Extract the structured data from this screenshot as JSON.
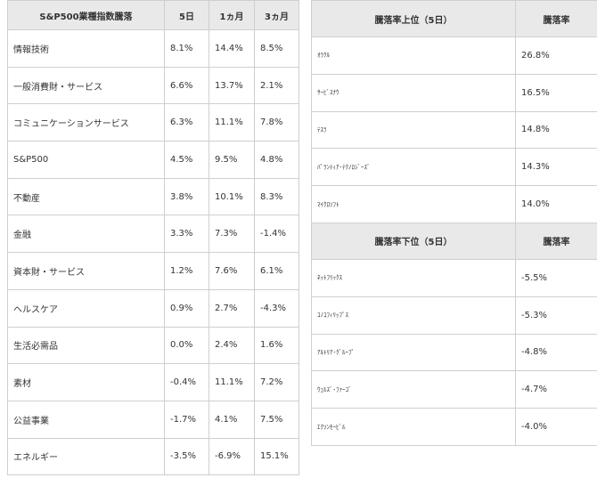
{
  "sector_table": {
    "headers": [
      "S&P500業種指数騰落",
      "5日",
      "1ヵ月",
      "3ヵ月"
    ],
    "rows": [
      [
        "情報技術",
        "8.1%",
        "14.4%",
        "8.5%"
      ],
      [
        "一般消費財・サービス",
        "6.6%",
        "13.7%",
        "2.1%"
      ],
      [
        "コミュニケーションサービス",
        "6.3%",
        "11.1%",
        "7.8%"
      ],
      [
        "S&P500",
        "4.5%",
        "9.5%",
        "4.8%"
      ],
      [
        "不動産",
        "3.8%",
        "10.1%",
        "8.3%"
      ],
      [
        "金融",
        "3.3%",
        "7.3%",
        "-1.4%"
      ],
      [
        "資本財・サービス",
        "1.2%",
        "7.6%",
        "6.1%"
      ],
      [
        "ヘルスケア",
        "0.9%",
        "2.7%",
        "-4.3%"
      ],
      [
        "生活必需品",
        "0.0%",
        "2.4%",
        "1.6%"
      ],
      [
        "素材",
        "-0.4%",
        "11.1%",
        "7.2%"
      ],
      [
        "公益事業",
        "-1.7%",
        "4.1%",
        "7.5%"
      ],
      [
        "エネルギー",
        "-3.5%",
        "-6.9%",
        "15.1%"
      ]
    ]
  },
  "top_table": {
    "headers": [
      "騰落率上位（5日）",
      "騰落率"
    ],
    "rows": [
      [
        "ｵﾗｸﾙ",
        "26.8%"
      ],
      [
        "ｻｰﾋﾞｽﾅｳ",
        "16.5%"
      ],
      [
        "ﾃｽﾗ",
        "14.8%"
      ],
      [
        "ﾊﾟﾗﾝﾃｨｱ･ﾃｸﾉﾛｼﾞｰｽﾞ",
        "14.3%"
      ],
      [
        "ﾏｲｸﾛｿﾌﾄ",
        "14.0%"
      ]
    ]
  },
  "bottom_table": {
    "headers": [
      "騰落率下位（5日）",
      "騰落率"
    ],
    "rows": [
      [
        "ﾈｯﾄﾌﾘｯｸｽ",
        "-5.5%"
      ],
      [
        "ｺﾉｺﾌｨﾘｯﾌﾟｽ",
        "-5.3%"
      ],
      [
        "ｱﾙﾄﾘｱ･ｸﾞﾙｰﾌﾟ",
        "-4.8%"
      ],
      [
        "ｳｪﾙｽﾞ･ﾌｧｰｺﾞ",
        "-4.7%"
      ],
      [
        "ｴｸｿﾝﾓｰﾋﾞﾙ",
        "-4.0%"
      ]
    ]
  }
}
